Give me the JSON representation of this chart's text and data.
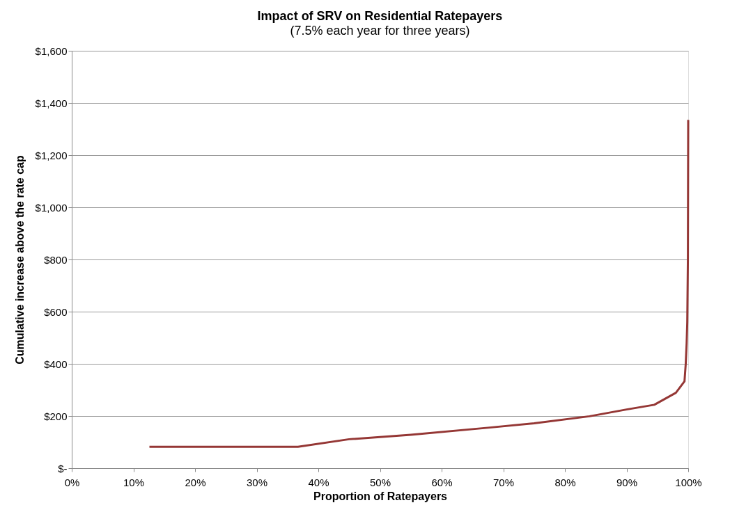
{
  "chart_data": {
    "type": "line",
    "title": "Impact of SRV on Residential Ratepayers",
    "subtitle": "(7.5% each year for three years)",
    "xlabel": "Proportion of Ratepayers",
    "ylabel": "Cumulative increase above the rate cap",
    "x": [
      12.6,
      20,
      30,
      36.7,
      45,
      55,
      67.5,
      75,
      84,
      90,
      94.5,
      98,
      99.4,
      99.6,
      99.75,
      99.85,
      99.95,
      100
    ],
    "series": [
      {
        "color": "#953735",
        "values": [
          82,
          82,
          82,
          82,
          111,
          128,
          155,
          172,
          199,
          225,
          243,
          289,
          333,
          400,
          480,
          560,
          800,
          1335
        ]
      }
    ],
    "xlim": [
      0,
      100
    ],
    "xticks": [
      {
        "value": 0,
        "label": "0%"
      },
      {
        "value": 10,
        "label": "10%"
      },
      {
        "value": 20,
        "label": "20%"
      },
      {
        "value": 30,
        "label": "30%"
      },
      {
        "value": 40,
        "label": "40%"
      },
      {
        "value": 50,
        "label": "50%"
      },
      {
        "value": 60,
        "label": "60%"
      },
      {
        "value": 70,
        "label": "70%"
      },
      {
        "value": 80,
        "label": "80%"
      },
      {
        "value": 90,
        "label": "90%"
      },
      {
        "value": 100,
        "label": "100%"
      }
    ],
    "ylim": [
      0,
      1600
    ],
    "yticks": [
      {
        "value": 0,
        "label": "$-"
      },
      {
        "value": 200,
        "label": "$200"
      },
      {
        "value": 400,
        "label": "$400"
      },
      {
        "value": 600,
        "label": "$600"
      },
      {
        "value": 800,
        "label": "$800"
      },
      {
        "value": 1000,
        "label": "$1,000"
      },
      {
        "value": 1200,
        "label": "$1,200"
      },
      {
        "value": 1400,
        "label": "$1,400"
      },
      {
        "value": 1600,
        "label": "$1,600"
      }
    ],
    "grid": "y",
    "marker": "none",
    "line_style": "solid"
  }
}
